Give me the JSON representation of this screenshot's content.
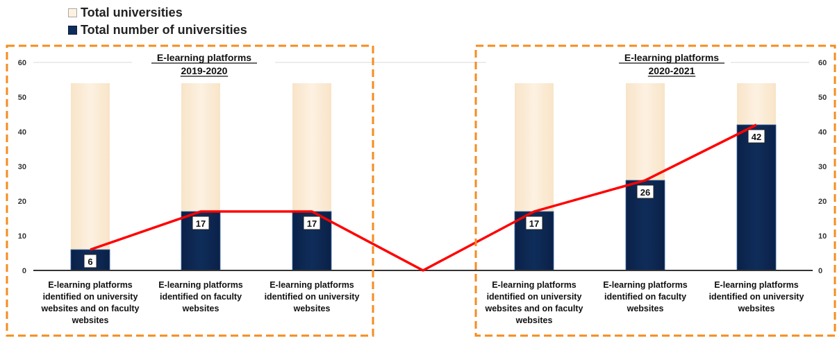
{
  "legend": {
    "total_universities": "Total universities",
    "total_number_of_universities": "Total number of universities"
  },
  "colors": {
    "total": "#fdf1e1",
    "platform": "#0f2d5a",
    "line": "#ff0000",
    "box": "#f58c1f"
  },
  "chart_data": {
    "type": "bar",
    "categories": [
      [
        "E-learning platforms",
        "identified on university",
        "websites and on faculty",
        "websites"
      ],
      [
        "E-learning platforms",
        "identified on faculty",
        "websites"
      ],
      [
        "E-learning platforms",
        "identified on university",
        "websites"
      ],
      [],
      [
        "E-learning platforms",
        "identified on university",
        "websites and on faculty",
        "websites"
      ],
      [
        "E-learning platforms",
        "identified on faculty",
        "websites"
      ],
      [
        "E-learning platforms",
        "identified on university",
        "websites"
      ]
    ],
    "series": [
      {
        "name": "Total universities",
        "values": [
          54,
          54,
          54,
          null,
          54,
          54,
          54
        ]
      },
      {
        "name": "Total number of universities",
        "values": [
          6,
          17,
          17,
          null,
          17,
          26,
          42
        ]
      }
    ],
    "line_values": [
      6,
      17,
      17,
      0,
      17,
      26,
      42
    ],
    "ylim": [
      0,
      60
    ],
    "yticks": [
      "0",
      "10",
      "20",
      "30",
      "40",
      "50",
      "60"
    ],
    "groups": [
      {
        "title": [
          "E-learning platforms",
          "2019-2020"
        ]
      },
      {
        "title": [
          "E-learning platforms",
          "2020-2021"
        ]
      }
    ],
    "legend_position": "top-left",
    "grid": false
  }
}
